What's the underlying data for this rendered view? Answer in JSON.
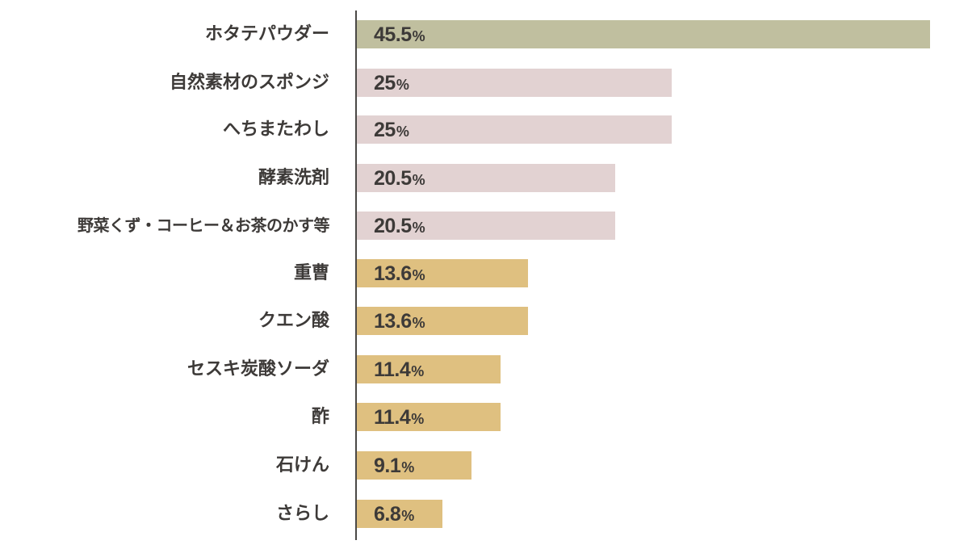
{
  "chart_data": {
    "type": "bar",
    "orientation": "horizontal",
    "title": "",
    "xlabel": "",
    "ylabel": "",
    "xlim": [
      0,
      45.5
    ],
    "grid": false,
    "legend": null,
    "unit": "%",
    "categories": [
      "ホタテパウダー",
      "自然素材のスポンジ",
      "へちまたわし",
      "酵素洗剤",
      "野菜くず・コーヒー＆お茶のかす等",
      "重曹",
      "クエン酸",
      "セスキ炭酸ソーダ",
      "酢",
      "石けん",
      "さらし"
    ],
    "values": [
      45.5,
      25,
      25,
      20.5,
      20.5,
      13.6,
      13.6,
      11.4,
      11.4,
      9.1,
      6.8
    ],
    "value_labels": [
      "45.5",
      "25",
      "25",
      "20.5",
      "20.5",
      "13.6",
      "13.6",
      "11.4",
      "11.4",
      "9.1",
      "6.8"
    ],
    "colors": [
      "#c0bf9f",
      "#e2d2d2",
      "#e2d2d2",
      "#e2d2d2",
      "#e2d2d2",
      "#dfc080",
      "#dfc080",
      "#dfc080",
      "#dfc080",
      "#dfc080",
      "#dfc080"
    ]
  },
  "rows": [
    {
      "label": "ホタテパウダー",
      "value": "45.5",
      "pct": "%",
      "num": 45.5,
      "color": "#c0bf9f"
    },
    {
      "label": "自然素材のスポンジ",
      "value": "25",
      "pct": "%",
      "num": 25,
      "color": "#e2d2d2"
    },
    {
      "label": "へちまたわし",
      "value": "25",
      "pct": "%",
      "num": 25,
      "color": "#e2d2d2"
    },
    {
      "label": "酵素洗剤",
      "value": "20.5",
      "pct": "%",
      "num": 20.5,
      "color": "#e2d2d2"
    },
    {
      "label": "野菜くず・コーヒー＆お茶のかす等",
      "value": "20.5",
      "pct": "%",
      "num": 20.5,
      "color": "#e2d2d2"
    },
    {
      "label": "重曹",
      "value": "13.6",
      "pct": "%",
      "num": 13.6,
      "color": "#dfc080"
    },
    {
      "label": "クエン酸",
      "value": "13.6",
      "pct": "%",
      "num": 13.6,
      "color": "#dfc080"
    },
    {
      "label": "セスキ炭酸ソーダ",
      "value": "11.4",
      "pct": "%",
      "num": 11.4,
      "color": "#dfc080"
    },
    {
      "label": "酢",
      "value": "11.4",
      "pct": "%",
      "num": 11.4,
      "color": "#dfc080"
    },
    {
      "label": "石けん",
      "value": "9.1",
      "pct": "%",
      "num": 9.1,
      "color": "#dfc080"
    },
    {
      "label": "さらし",
      "value": "6.8",
      "pct": "%",
      "num": 6.8,
      "color": "#dfc080"
    }
  ]
}
